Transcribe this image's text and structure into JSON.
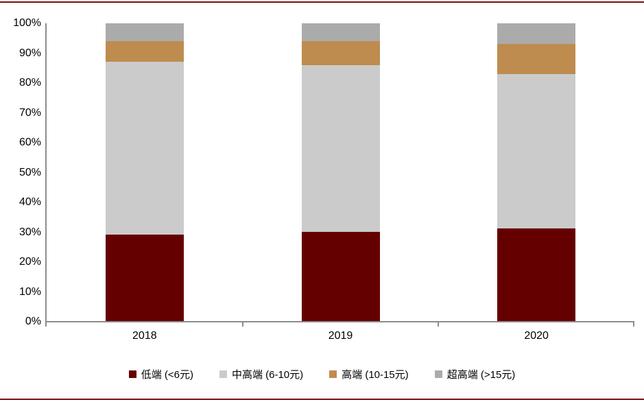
{
  "chart_data": {
    "type": "bar",
    "stacked": true,
    "title": "",
    "xlabel": "",
    "ylabel": "",
    "categories": [
      "2018",
      "2019",
      "2020"
    ],
    "series": [
      {
        "name": "低端 (<6元)",
        "color": "#650000",
        "values": [
          29,
          30,
          31
        ]
      },
      {
        "name": "中高端 (6-10元)",
        "color": "#CBCBCB",
        "values": [
          58,
          56,
          52
        ]
      },
      {
        "name": "高端 (10-15元)",
        "color": "#BE8C4E",
        "values": [
          7,
          8,
          10
        ]
      },
      {
        "name": "超高端 (>15元)",
        "color": "#ABABAB",
        "values": [
          6,
          6,
          7
        ]
      }
    ],
    "ylim": [
      0,
      100
    ],
    "y_ticks": [
      "0%",
      "10%",
      "20%",
      "30%",
      "40%",
      "50%",
      "60%",
      "70%",
      "80%",
      "90%",
      "100%"
    ],
    "grid": "off",
    "legend_position": "bottom"
  },
  "frame": {
    "rule_color": "#7E0E10",
    "axis_line_color": "#8C8C8C"
  }
}
